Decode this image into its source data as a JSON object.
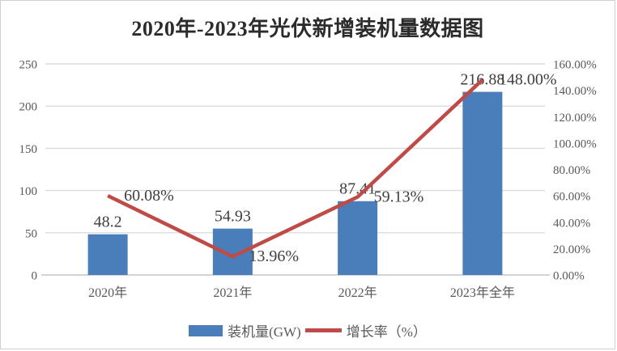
{
  "chart_data": {
    "type": "combo-bar-line",
    "title": "2020年-2023年光伏新增装机量数据图",
    "categories": [
      "2020年",
      "2021年",
      "2022年",
      "2023年全年"
    ],
    "series": [
      {
        "name": "装机量(GW)",
        "type": "bar",
        "axis": "left",
        "color": "#4a7ebb",
        "values": [
          48.2,
          54.93,
          87.41,
          216.88
        ],
        "labels": [
          "48.2",
          "54.93",
          "87.41",
          "216.88"
        ]
      },
      {
        "name": "增长率（%）",
        "type": "line",
        "axis": "right",
        "color": "#bf4b48",
        "values": [
          60.08,
          13.96,
          59.13,
          148.0
        ],
        "labels": [
          "60.08%",
          "13.96%",
          "59.13%",
          "148.00%"
        ]
      }
    ],
    "left_axis": {
      "min": 0,
      "max": 250,
      "step": 50,
      "tick_labels": [
        "0",
        "50",
        "100",
        "150",
        "200",
        "250"
      ]
    },
    "right_axis": {
      "min": 0,
      "max": 160,
      "step": 20,
      "tick_labels": [
        "0.00%",
        "20.00%",
        "40.00%",
        "60.00%",
        "80.00%",
        "100.00%",
        "120.00%",
        "140.00%",
        "160.00%"
      ]
    },
    "grid": true,
    "legend_position": "bottom",
    "colors": {
      "gridline": "#dcdcdc",
      "axis_line": "#c6c6c6",
      "tick_text": "#595959",
      "data_label_text": "#3f3f3f",
      "title_text": "#2b2b2b",
      "background": "#ffffff",
      "frame_border": "#cfcfcf"
    }
  }
}
